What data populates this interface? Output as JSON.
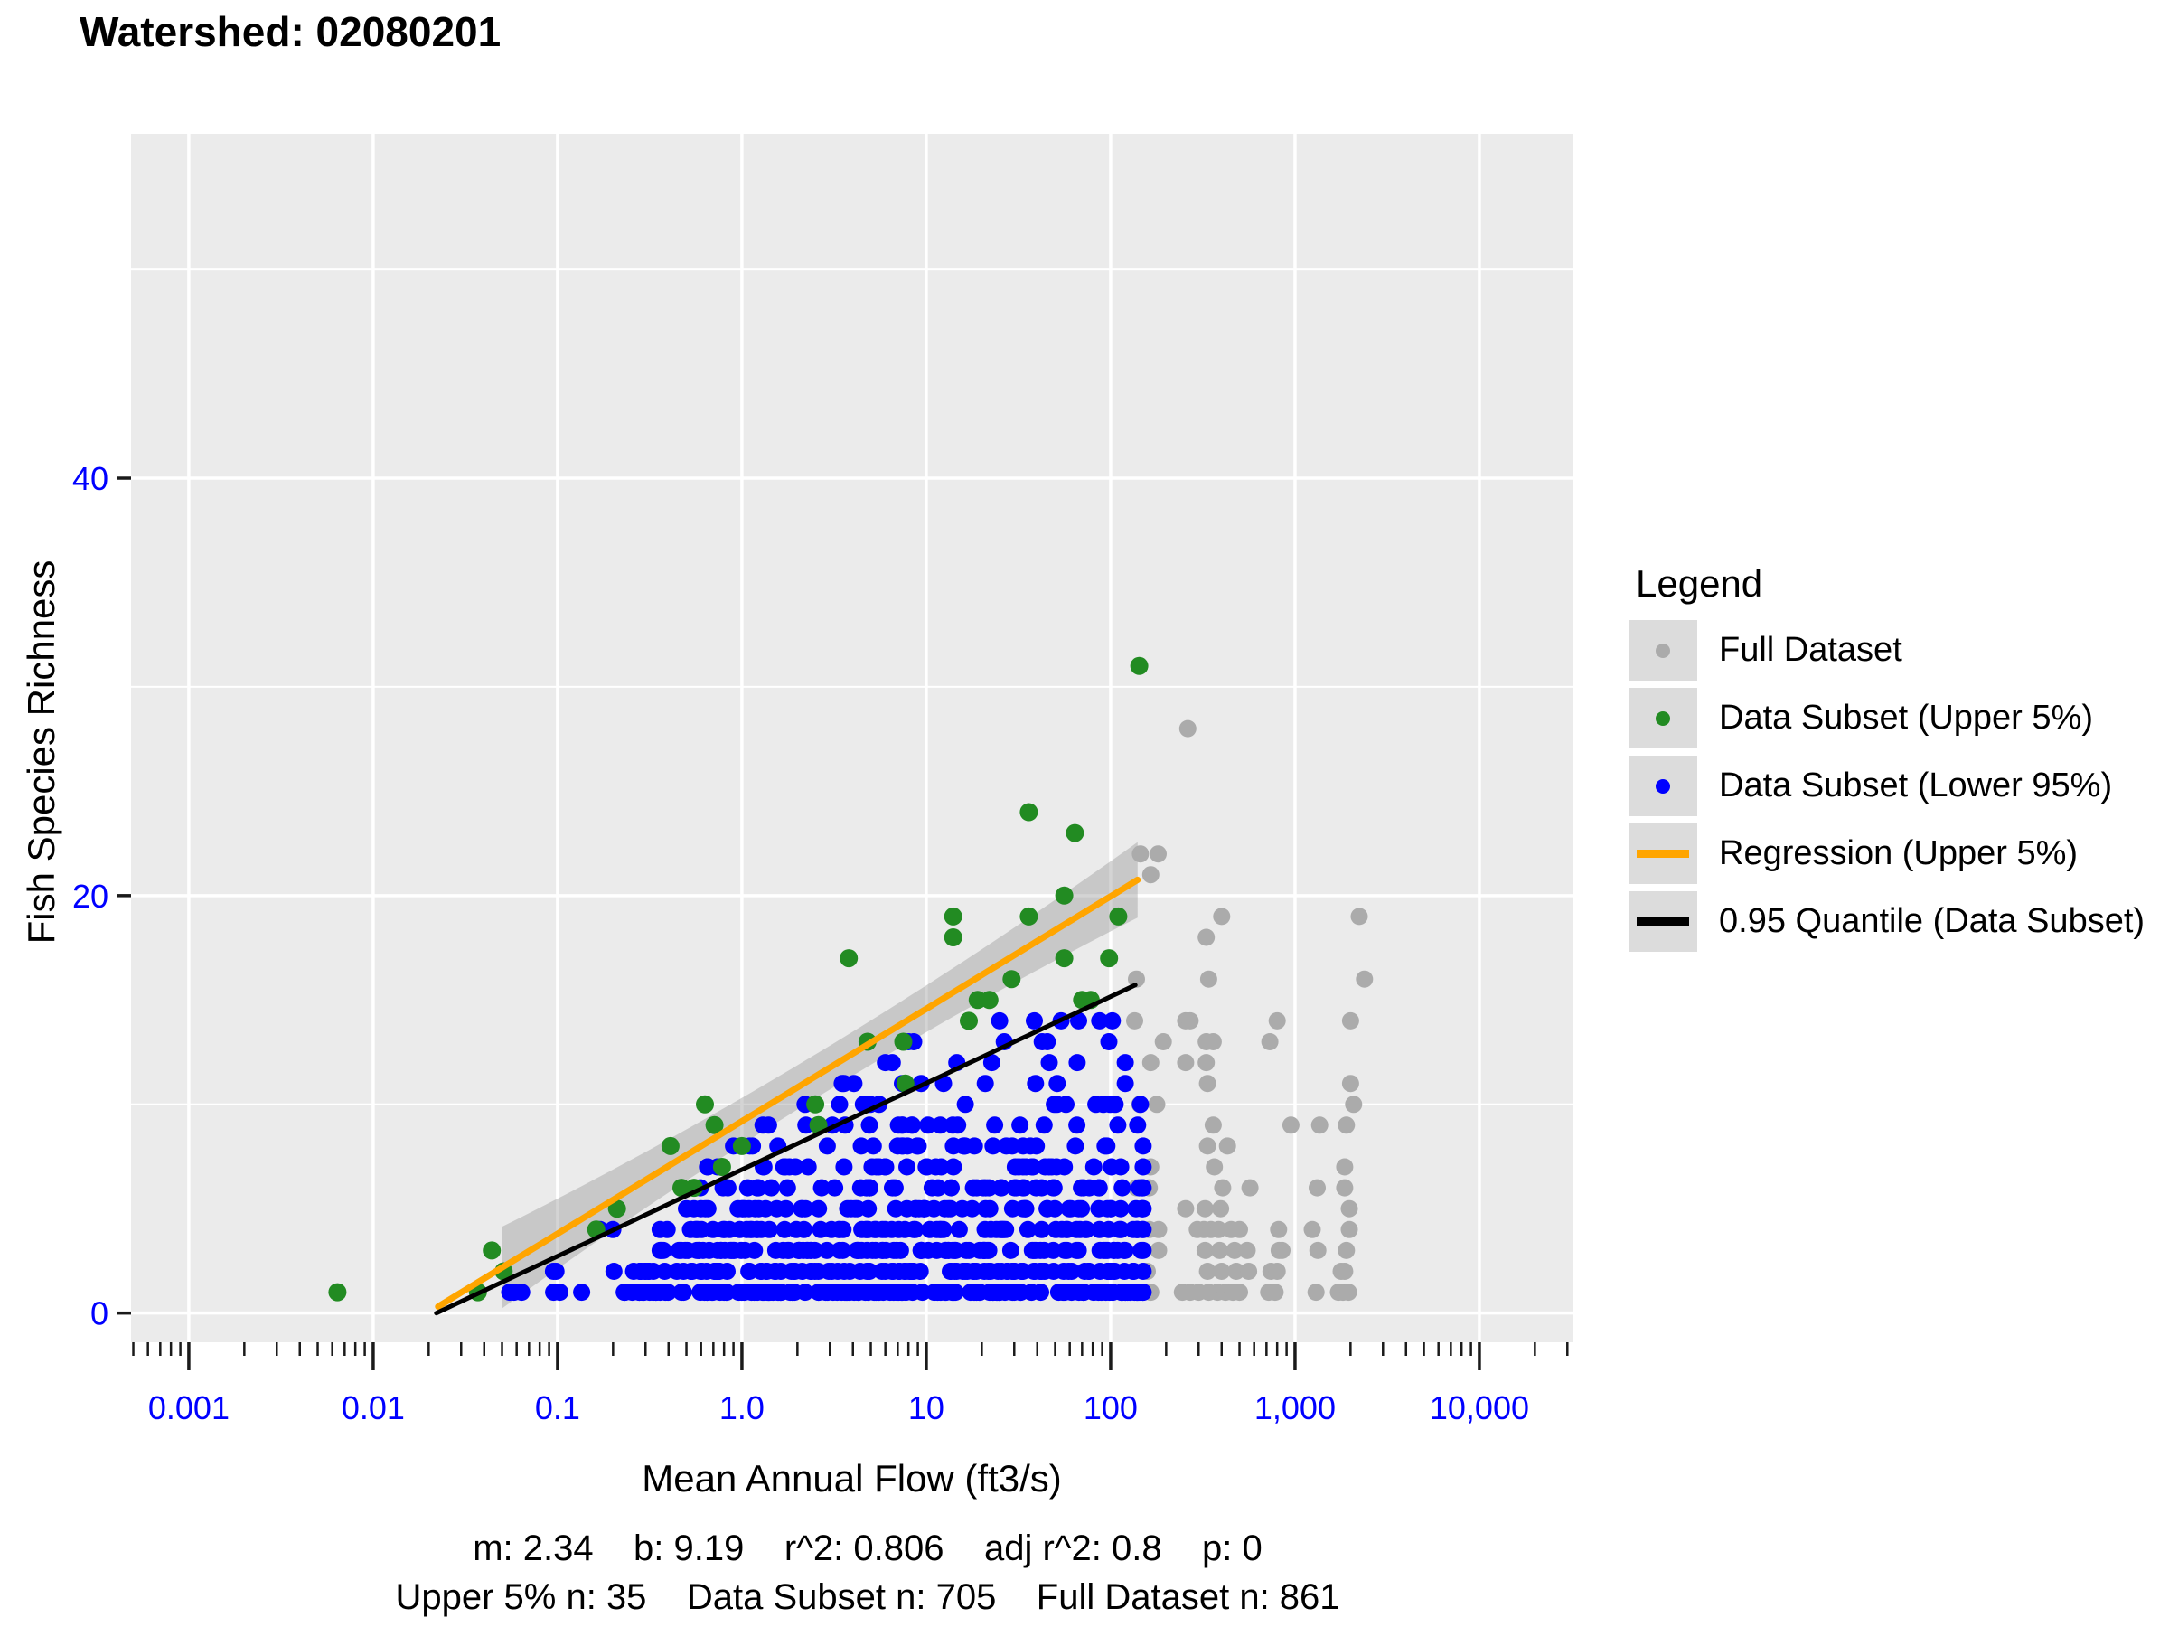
{
  "legend": {
    "title": "Legend",
    "items": [
      {
        "id": "full-dataset",
        "label": "Full Dataset",
        "marker": "point",
        "color": "#ABABAB"
      },
      {
        "id": "subset-upper-5",
        "label": "Data Subset (Upper 5%)",
        "marker": "point",
        "color": "#228B22"
      },
      {
        "id": "subset-lower-95",
        "label": "Data Subset (Lower 95%)",
        "marker": "point",
        "color": "#0000FF"
      },
      {
        "id": "regression-upper-5",
        "label": "Regression (Upper 5%)",
        "marker": "line",
        "color": "#FFA500"
      },
      {
        "id": "quantile-095",
        "label": "0.95 Quantile (Data Subset)",
        "marker": "line",
        "color": "#000000"
      }
    ]
  },
  "chart_data": {
    "type": "scatter",
    "title": "Watershed: 02080201",
    "xlabel": "Mean Annual Flow (ft3/s)",
    "ylabel": "Fish Species Richness",
    "x_scale": "log10",
    "xlim": [
      0.000486,
      32000
    ],
    "ylim": [
      -1.4,
      56.5
    ],
    "x_ticks": [
      {
        "value": 0.001,
        "label": "0.001"
      },
      {
        "value": 0.01,
        "label": "0.01"
      },
      {
        "value": 0.1,
        "label": "0.1"
      },
      {
        "value": 1.0,
        "label": "1.0"
      },
      {
        "value": 10,
        "label": "10"
      },
      {
        "value": 100,
        "label": "100"
      },
      {
        "value": 1000,
        "label": "1,000"
      },
      {
        "value": 10000,
        "label": "10,000"
      }
    ],
    "y_ticks": [
      {
        "value": 0,
        "label": "0"
      },
      {
        "value": 20,
        "label": "20"
      },
      {
        "value": 40,
        "label": "40"
      }
    ],
    "y_minor_gridlines": [
      10,
      30,
      50
    ],
    "x_minor_ticks": {
      "decade_min": -4,
      "decade_max": 4,
      "mantissas": [
        2,
        3,
        4,
        5,
        6,
        7,
        8,
        9
      ]
    },
    "grid": true,
    "legend_position": "right",
    "colors": {
      "panel_bg": "#EBEBEB",
      "gridline": "#FFFFFF",
      "axis_tick": "#1A1A1A",
      "tick_label": "#0000FF",
      "gray_points": "#ABABAB",
      "green_points": "#228B22",
      "blue_points": "#0000FF",
      "regression": "#FFA500",
      "quantile": "#000000",
      "ribbon": "rgba(153,153,153,0.42)"
    },
    "series": {
      "full_dataset": {
        "label": "Full Dataset",
        "points": [
          [
            262,
            28
          ],
          [
            145,
            22
          ],
          [
            181,
            22
          ],
          [
            165,
            21
          ],
          [
            400,
            19
          ],
          [
            2230,
            19
          ],
          [
            330,
            18
          ],
          [
            138,
            16
          ],
          [
            340,
            16
          ],
          [
            2380,
            16
          ],
          [
            135,
            14
          ],
          [
            255,
            14
          ],
          [
            270,
            14
          ],
          [
            800,
            14
          ],
          [
            2000,
            14
          ],
          [
            193,
            13
          ],
          [
            330,
            13
          ],
          [
            360,
            13
          ],
          [
            730,
            13
          ],
          [
            165,
            12
          ],
          [
            255,
            12
          ],
          [
            330,
            12
          ],
          [
            335,
            11
          ],
          [
            2000,
            11
          ],
          [
            144,
            10
          ],
          [
            178,
            10
          ],
          [
            2080,
            10
          ],
          [
            360,
            9
          ],
          [
            950,
            9
          ],
          [
            1360,
            9
          ],
          [
            1900,
            9
          ],
          [
            335,
            8
          ],
          [
            430,
            8
          ],
          [
            165,
            7
          ],
          [
            365,
            7
          ],
          [
            1860,
            7
          ],
          [
            138,
            6
          ],
          [
            162,
            6
          ],
          [
            405,
            6
          ],
          [
            570,
            6
          ],
          [
            1320,
            6
          ],
          [
            1860,
            6
          ],
          [
            255,
            5
          ],
          [
            325,
            5
          ],
          [
            395,
            5
          ],
          [
            1970,
            5
          ],
          [
            162,
            4
          ],
          [
            182,
            4
          ],
          [
            295,
            4
          ],
          [
            320,
            4
          ],
          [
            350,
            4
          ],
          [
            385,
            4
          ],
          [
            450,
            4
          ],
          [
            500,
            4
          ],
          [
            815,
            4
          ],
          [
            1240,
            4
          ],
          [
            1970,
            4
          ],
          [
            182,
            3
          ],
          [
            325,
            3
          ],
          [
            390,
            3
          ],
          [
            470,
            3
          ],
          [
            550,
            3
          ],
          [
            820,
            3
          ],
          [
            850,
            3
          ],
          [
            1330,
            3
          ],
          [
            1900,
            3
          ],
          [
            158,
            2
          ],
          [
            335,
            2
          ],
          [
            400,
            2
          ],
          [
            480,
            2
          ],
          [
            560,
            2
          ],
          [
            740,
            2
          ],
          [
            800,
            2
          ],
          [
            1780,
            2
          ],
          [
            1860,
            2
          ],
          [
            138,
            1
          ],
          [
            150,
            1
          ],
          [
            165,
            1
          ],
          [
            245,
            1
          ],
          [
            270,
            1
          ],
          [
            300,
            1
          ],
          [
            340,
            1
          ],
          [
            380,
            1
          ],
          [
            420,
            1
          ],
          [
            460,
            1
          ],
          [
            500,
            1
          ],
          [
            720,
            1
          ],
          [
            780,
            1
          ],
          [
            1300,
            1
          ],
          [
            1720,
            1
          ],
          [
            1820,
            1
          ],
          [
            1950,
            1
          ]
        ]
      },
      "subset_upper": {
        "label": "Data Subset (Upper 5%)",
        "points": [
          [
            0.0064,
            1
          ],
          [
            0.037,
            1
          ],
          [
            0.051,
            2
          ],
          [
            0.044,
            3
          ],
          [
            0.162,
            4
          ],
          [
            0.21,
            5
          ],
          [
            0.41,
            8
          ],
          [
            0.47,
            6
          ],
          [
            0.55,
            6
          ],
          [
            0.63,
            10
          ],
          [
            0.71,
            9
          ],
          [
            0.78,
            7
          ],
          [
            1.0,
            8
          ],
          [
            2.5,
            10
          ],
          [
            2.6,
            9
          ],
          [
            3.8,
            17
          ],
          [
            4.8,
            13
          ],
          [
            7.5,
            13
          ],
          [
            7.7,
            11
          ],
          [
            14,
            18
          ],
          [
            14,
            19
          ],
          [
            17,
            14
          ],
          [
            19,
            15
          ],
          [
            22,
            15
          ],
          [
            29,
            16
          ],
          [
            36,
            19
          ],
          [
            36,
            24
          ],
          [
            56,
            17
          ],
          [
            56,
            20
          ],
          [
            64,
            23
          ],
          [
            70,
            15
          ],
          [
            78,
            15
          ],
          [
            98,
            17
          ],
          [
            110,
            19
          ],
          [
            143,
            31
          ]
        ]
      },
      "subset_lower": {
        "label": "Data Subset (Lower 95%)",
        "note": "670 blue points drawn from horizontal integer-richness bands; x distributed log-uniformly",
        "bands": [
          {
            "y": 1,
            "x_min": 0.055,
            "x_max": 0.2,
            "n": 6
          },
          {
            "y": 1,
            "x_min": 0.23,
            "x_max": 150,
            "n": 136
          },
          {
            "y": 2,
            "x_min": 0.095,
            "x_max": 0.26,
            "n": 4
          },
          {
            "y": 2,
            "x_min": 0.28,
            "x_max": 150,
            "n": 111
          },
          {
            "y": 3,
            "x_min": 0.36,
            "x_max": 150,
            "n": 96
          },
          {
            "y": 4,
            "x_min": 0.17,
            "x_max": 0.21,
            "n": 2
          },
          {
            "y": 4,
            "x_min": 0.36,
            "x_max": 150,
            "n": 74
          },
          {
            "y": 5,
            "x_min": 0.5,
            "x_max": 150,
            "n": 62
          },
          {
            "y": 6,
            "x_min": 0.55,
            "x_max": 150,
            "n": 48
          },
          {
            "y": 7,
            "x_min": 0.65,
            "x_max": 150,
            "n": 38
          },
          {
            "y": 8,
            "x_min": 0.9,
            "x_max": 150,
            "n": 28
          },
          {
            "y": 9,
            "x_min": 1.3,
            "x_max": 140,
            "n": 21
          },
          {
            "y": 10,
            "x_min": 2.2,
            "x_max": 145,
            "n": 15
          },
          {
            "y": 11,
            "x_min": 3.5,
            "x_max": 120,
            "n": 10
          },
          {
            "y": 12,
            "x_min": 6,
            "x_max": 130,
            "n": 7
          },
          {
            "y": 13,
            "x_min": 8,
            "x_max": 130,
            "n": 6
          },
          {
            "y": 14,
            "x_min": 25,
            "x_max": 140,
            "n": 6
          }
        ]
      }
    },
    "regression_line": {
      "label": "Regression (Upper 5%)",
      "model": "y = m*ln(x) + b",
      "m": 2.34,
      "b": 9.19,
      "x_start": 0.0225,
      "x_end": 140
    },
    "quantile_line": {
      "label": "0.95 Quantile (Data Subset)",
      "model": "y = m*ln(x) + b",
      "m": 1.8,
      "b": 6.87,
      "x_start": 0.022,
      "x_end": 136
    },
    "ribbon": {
      "about": "confidence band around upper-5% regression",
      "half_width_model": "a + k*(log10(x) - c)^2",
      "a": 1.05,
      "k": 0.28,
      "c": 0.5,
      "x_start": 0.05,
      "x_end": 140
    },
    "stats_line1": "m: 2.34    b: 9.19    r^2: 0.806    adj r^2: 0.8    p: 0",
    "stats_line2": "Upper 5% n: 35    Data Subset n: 705    Full Dataset n: 861",
    "stats": {
      "m": 2.34,
      "b": 9.19,
      "r2": 0.806,
      "adj_r2": 0.8,
      "p": 0,
      "upper5_n": 35,
      "data_subset_n": 705,
      "full_dataset_n": 861
    },
    "random_seed": 77
  }
}
